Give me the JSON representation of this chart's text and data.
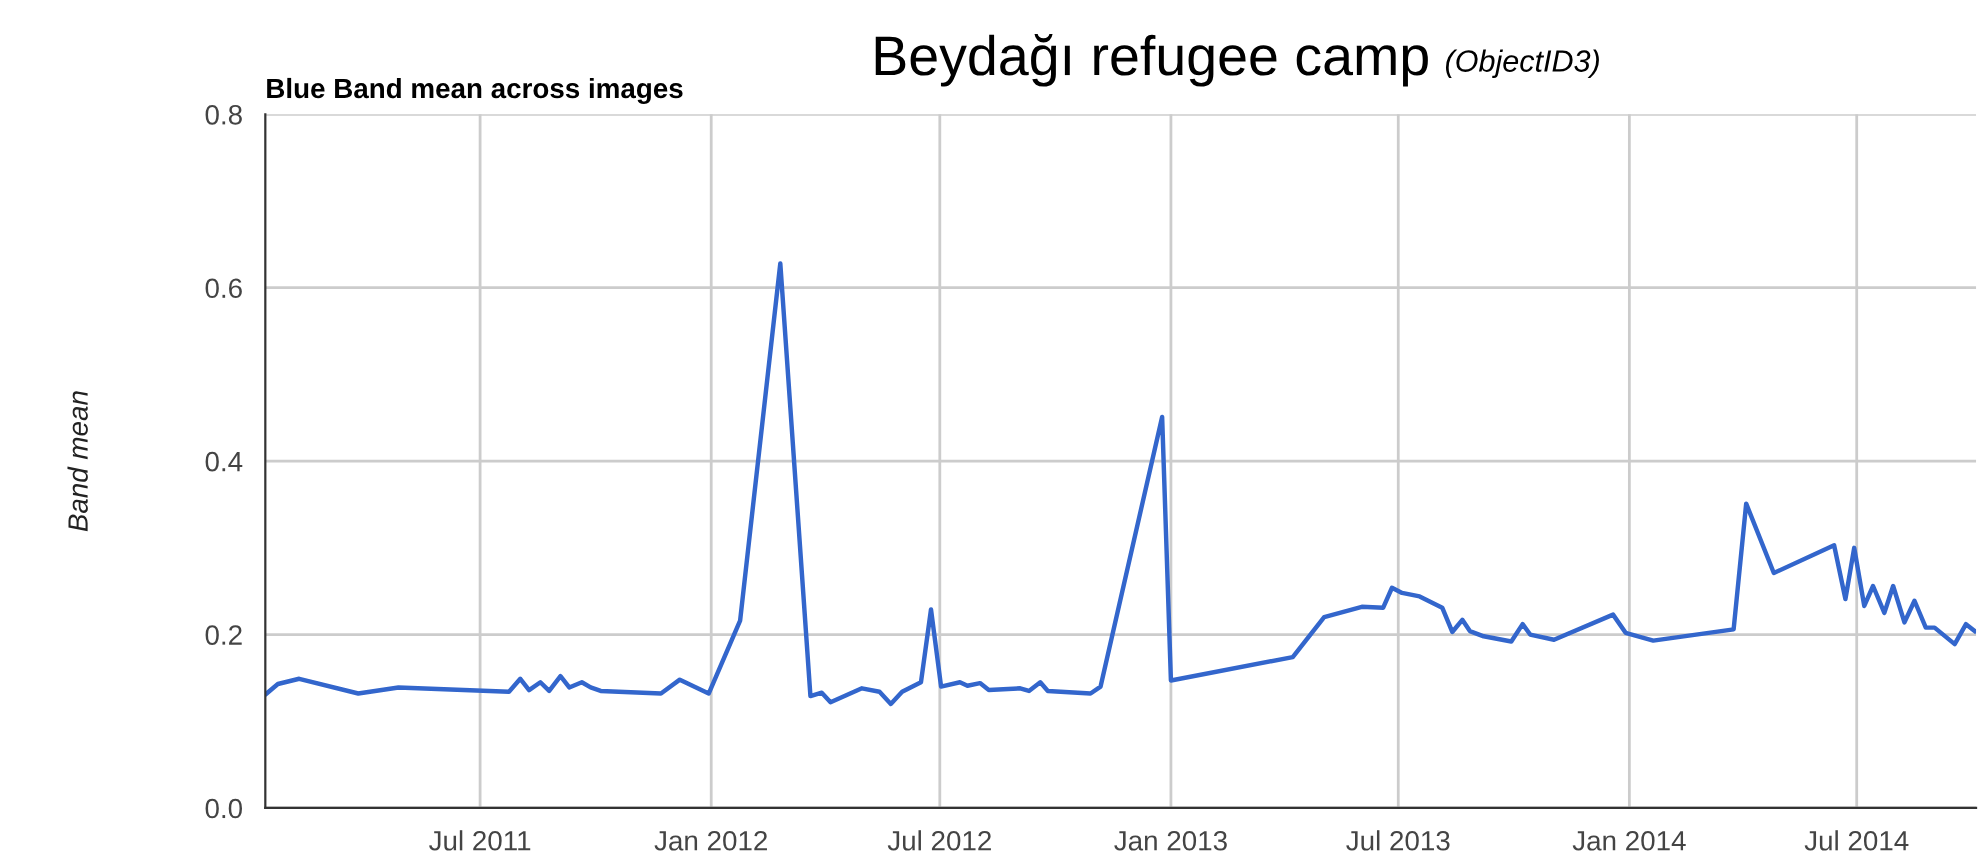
{
  "chart_data": {
    "type": "line",
    "title": "Blue Band mean across images",
    "subtitle": "Beydağı refugee camp",
    "annotations": [
      "(ObjectID3)"
    ],
    "ylabel": "Band mean",
    "x": [
      "2011-01-12",
      "2011-01-21",
      "2011-02-07",
      "2011-03-26",
      "2011-04-27",
      "2011-07-24",
      "2011-08-02",
      "2011-08-09",
      "2011-08-18",
      "2011-08-25",
      "2011-09-03",
      "2011-09-10",
      "2011-09-20",
      "2011-09-27",
      "2011-10-05",
      "2011-11-22",
      "2011-12-07",
      "2011-12-30",
      "2012-01-24",
      "2012-02-25",
      "2012-03-20",
      "2012-03-29",
      "2012-04-05",
      "2012-04-30",
      "2012-05-14",
      "2012-05-23",
      "2012-06-01",
      "2012-06-16",
      "2012-06-24",
      "2012-07-02",
      "2012-07-17",
      "2012-07-23",
      "2012-08-02",
      "2012-08-09",
      "2012-09-03",
      "2012-09-10",
      "2012-09-19",
      "2012-09-25",
      "2012-10-29",
      "2012-11-06",
      "2012-12-25",
      "2013-01-01",
      "2013-04-08",
      "2013-05-03",
      "2013-06-02",
      "2013-06-19",
      "2013-06-26",
      "2013-07-04",
      "2013-07-18",
      "2013-08-05",
      "2013-08-13",
      "2013-08-21",
      "2013-08-27",
      "2013-09-07",
      "2013-09-29",
      "2013-10-08",
      "2013-10-14",
      "2013-11-02",
      "2013-12-19",
      "2013-12-29",
      "2014-01-20",
      "2014-03-25",
      "2014-04-04",
      "2014-04-26",
      "2014-06-13",
      "2014-06-22",
      "2014-06-29",
      "2014-07-07",
      "2014-07-14",
      "2014-07-23",
      "2014-07-30",
      "2014-08-08",
      "2014-08-16",
      "2014-08-25",
      "2014-09-01",
      "2014-09-17",
      "2014-09-26",
      "2014-10-03"
    ],
    "series": [
      {
        "color": "#3366cc",
        "values": [
          0.132,
          0.143,
          0.149,
          0.132,
          0.139,
          0.134,
          0.149,
          0.136,
          0.145,
          0.135,
          0.152,
          0.139,
          0.145,
          0.139,
          0.135,
          0.132,
          0.148,
          0.132,
          0.216,
          0.628,
          0.129,
          0.133,
          0.122,
          0.138,
          0.134,
          0.12,
          0.134,
          0.145,
          0.229,
          0.14,
          0.145,
          0.141,
          0.144,
          0.136,
          0.138,
          0.135,
          0.145,
          0.135,
          0.132,
          0.14,
          0.451,
          0.147,
          0.174,
          0.22,
          0.232,
          0.231,
          0.254,
          0.248,
          0.244,
          0.231,
          0.203,
          0.217,
          0.204,
          0.198,
          0.192,
          0.212,
          0.2,
          0.194,
          0.223,
          0.202,
          0.193,
          0.206,
          0.351,
          0.271,
          0.303,
          0.241,
          0.3,
          0.233,
          0.256,
          0.225,
          0.256,
          0.214,
          0.239,
          0.208,
          0.208,
          0.189,
          0.212,
          0.204
        ]
      }
    ],
    "xlim": [
      "2011-01-11",
      "2014-10-04"
    ],
    "xticks": [
      {
        "value": "2011-07-01",
        "label": "Jul 2011"
      },
      {
        "value": "2012-01-01",
        "label": "Jan 2012"
      },
      {
        "value": "2012-07-01",
        "label": "Jul 2012"
      },
      {
        "value": "2013-01-01",
        "label": "Jan 2013"
      },
      {
        "value": "2013-07-01",
        "label": "Jul 2013"
      },
      {
        "value": "2014-01-01",
        "label": "Jan 2014"
      },
      {
        "value": "2014-07-01",
        "label": "Jul 2014"
      }
    ],
    "ylim": [
      0,
      0.8
    ],
    "yticks": [
      {
        "value": 0,
        "label": "0.0"
      },
      {
        "value": 0.2,
        "label": "0.2"
      },
      {
        "value": 0.4,
        "label": "0.4"
      },
      {
        "value": 0.6,
        "label": "0.6"
      },
      {
        "value": 0.8,
        "label": "0.8"
      }
    ],
    "grid": true,
    "marker": "none",
    "line_style": "solid"
  }
}
